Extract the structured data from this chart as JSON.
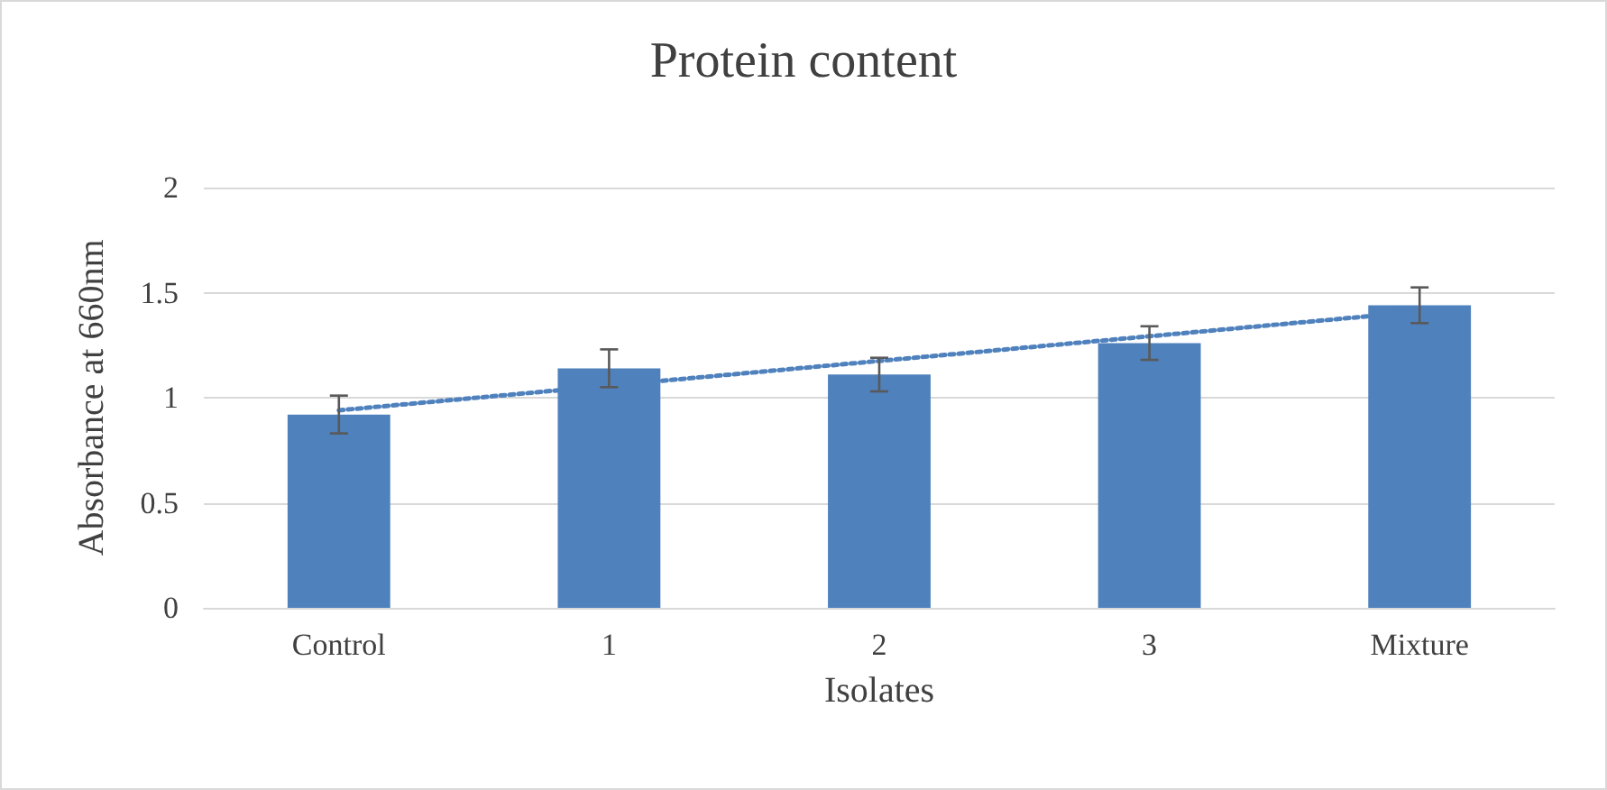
{
  "chart_data": {
    "type": "bar",
    "title": "Protein content",
    "xlabel": "Isolates",
    "ylabel": "Absorbance at 660nm",
    "categories": [
      "Control",
      "1",
      "2",
      "3",
      "Mixture"
    ],
    "series": [
      {
        "color": "#4f81bd",
        "values": [
          0.92,
          1.14,
          1.11,
          1.26,
          1.44
        ],
        "errors": [
          0.09,
          0.09,
          0.08,
          0.08,
          0.085
        ]
      },
      {
        "type": "line",
        "color": "#4f81bd",
        "line_style": "dotted",
        "marker": "none",
        "x": [
          "Control",
          "Mixture"
        ],
        "values": [
          0.94,
          1.41
        ]
      }
    ],
    "ylim": [
      0,
      2
    ],
    "yticks": [
      0,
      0.5,
      1,
      1.5,
      2
    ],
    "grid": "y"
  }
}
